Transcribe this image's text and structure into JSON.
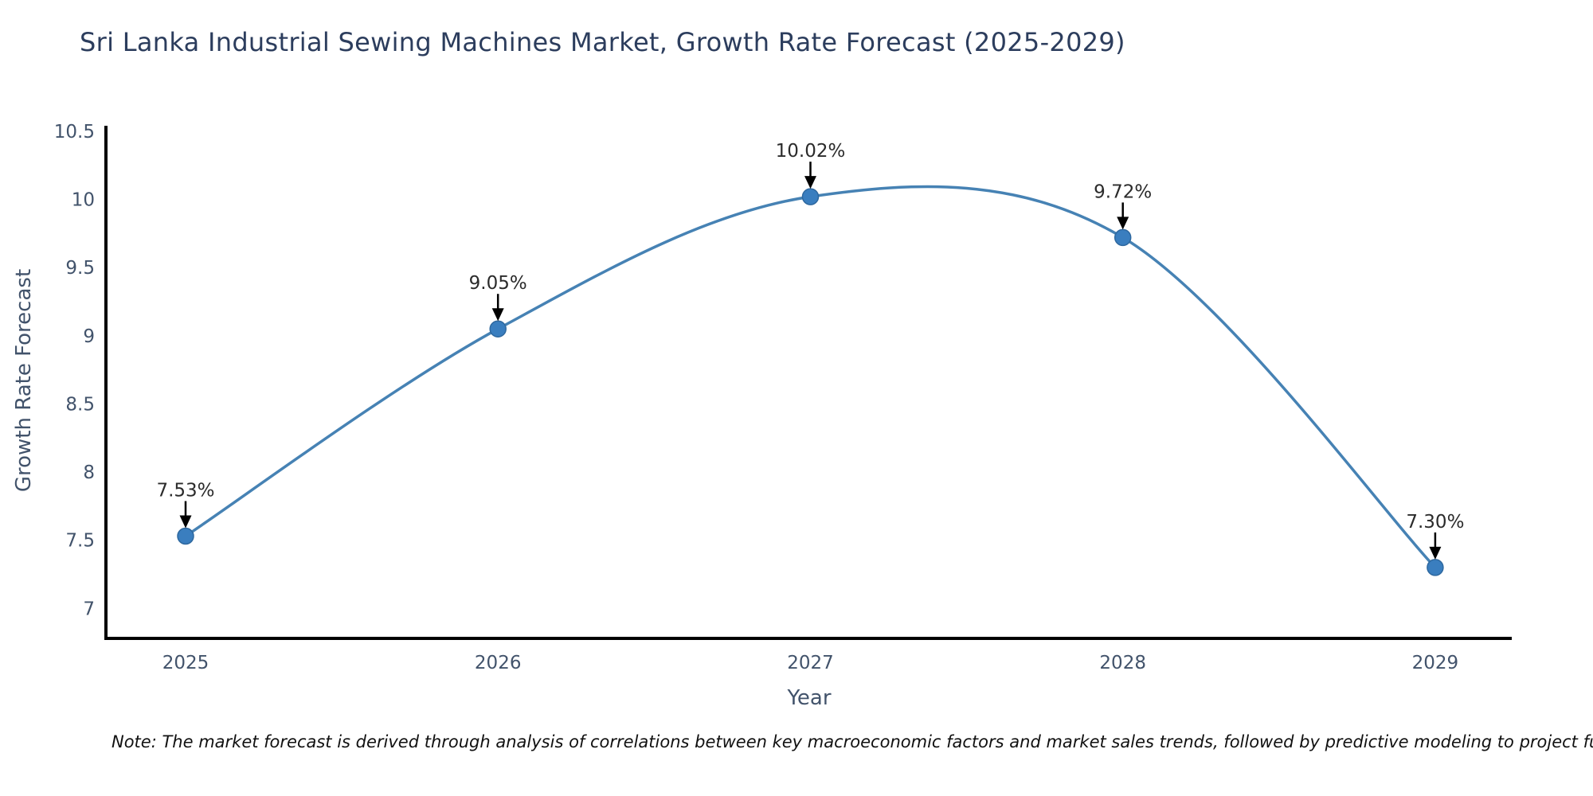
{
  "page": {
    "note": "Note: The market forecast is derived through analysis of correlations between key macroeconomic factors and market sales trends, followed by predictive modeling to project future sales"
  },
  "chart_data": {
    "type": "line",
    "title": "Sri Lanka Industrial Sewing Machines Market, Growth Rate Forecast (2025-2029)",
    "xlabel": "Year",
    "ylabel": "Growth Rate Forecast",
    "x": [
      2025,
      2026,
      2027,
      2028,
      2029
    ],
    "y": [
      7.53,
      9.05,
      10.02,
      9.72,
      7.3
    ],
    "point_labels": [
      "7.53%",
      "9.05%",
      "10.02%",
      "9.72%",
      "7.30%"
    ],
    "xtick_labels": [
      "2025",
      "2026",
      "2027",
      "2028",
      "2029"
    ],
    "ytick_values": [
      7,
      7.5,
      8,
      8.5,
      9,
      9.5,
      10,
      10.5
    ],
    "xlim": [
      2024.745,
      2029.245
    ],
    "ylim": [
      6.78,
      10.54
    ],
    "line_shape": "spline",
    "grid": false,
    "legend": "none",
    "colors": {
      "line": "#4682b4",
      "marker_fill": "#3a7ebf",
      "marker_edge": "#2e689f",
      "axis": "#000000",
      "title": "#2c3d5d",
      "tick_label": "#42536b",
      "axis_label": "#42536b",
      "annotation_text": "#2b2b2b",
      "arrow": "#000000",
      "note": "#111111"
    }
  }
}
